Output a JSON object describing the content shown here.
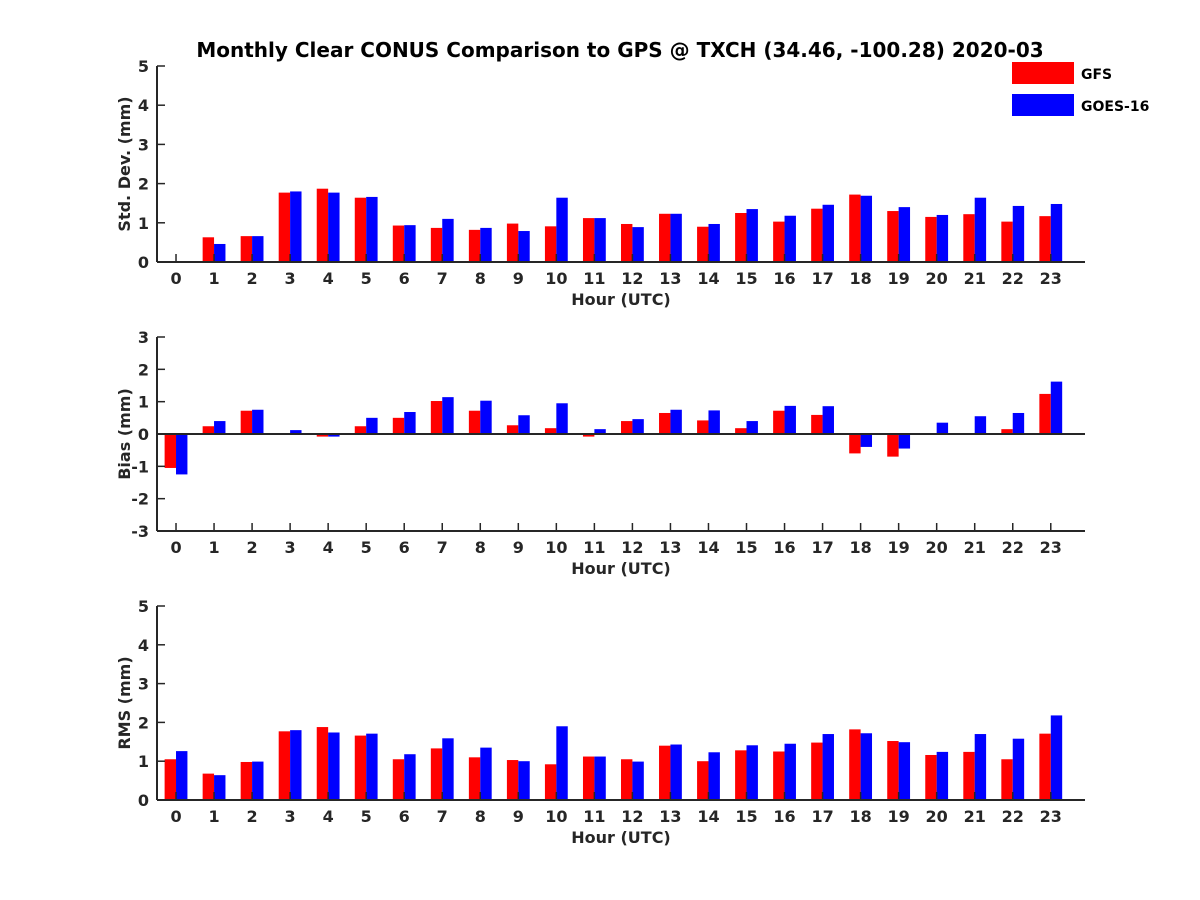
{
  "title": "Monthly Clear CONUS Comparison to GPS @ TXCH (34.46, -100.28) 2020-03",
  "legend": [
    {
      "name": "GFS",
      "color": "#ff0000"
    },
    {
      "name": "GOES-16",
      "color": "#0000ff"
    }
  ],
  "chart_data": [
    {
      "type": "bar",
      "title": "Monthly Clear CONUS Comparison to GPS @ TXCH (34.46, -100.28) 2020-03",
      "xlabel": "Hour (UTC)",
      "ylabel": "Std. Dev. (mm)",
      "ylim": [
        0,
        5
      ],
      "yticks": [
        0,
        1,
        2,
        3,
        4,
        5
      ],
      "categories": [
        "0",
        "1",
        "2",
        "3",
        "4",
        "5",
        "6",
        "7",
        "8",
        "9",
        "10",
        "11",
        "12",
        "13",
        "14",
        "15",
        "16",
        "17",
        "18",
        "19",
        "20",
        "21",
        "22",
        "23"
      ],
      "series": [
        {
          "name": "GFS",
          "color": "#ff0000",
          "values": [
            0,
            0.63,
            0.66,
            1.77,
            1.87,
            1.64,
            0.93,
            0.87,
            0.82,
            0.98,
            0.91,
            1.12,
            0.97,
            1.23,
            0.9,
            1.25,
            1.03,
            1.36,
            1.72,
            1.3,
            1.15,
            1.22,
            1.03,
            1.17
          ]
        },
        {
          "name": "GOES-16",
          "color": "#0000ff",
          "values": [
            0,
            0.46,
            0.66,
            1.8,
            1.77,
            1.66,
            0.94,
            1.1,
            0.87,
            0.79,
            1.64,
            1.12,
            0.89,
            1.23,
            0.97,
            1.35,
            1.18,
            1.46,
            1.69,
            1.4,
            1.2,
            1.64,
            1.43,
            1.48
          ]
        }
      ]
    },
    {
      "type": "bar",
      "xlabel": "Hour (UTC)",
      "ylabel": "Bias (mm)",
      "ylim": [
        -3,
        3
      ],
      "yticks": [
        -3,
        -2,
        -1,
        0,
        1,
        2,
        3
      ],
      "categories": [
        "0",
        "1",
        "2",
        "3",
        "4",
        "5",
        "6",
        "7",
        "8",
        "9",
        "10",
        "11",
        "12",
        "13",
        "14",
        "15",
        "16",
        "17",
        "18",
        "19",
        "20",
        "21",
        "22",
        "23"
      ],
      "series": [
        {
          "name": "GFS",
          "color": "#ff0000",
          "values": [
            -1.05,
            0.24,
            0.72,
            0,
            -0.08,
            0.24,
            0.5,
            1.02,
            0.72,
            0.27,
            0.18,
            -0.08,
            0.4,
            0.65,
            0.42,
            0.18,
            0.72,
            0.59,
            -0.6,
            -0.7,
            0,
            0.03,
            0.15,
            1.24
          ]
        },
        {
          "name": "GOES-16",
          "color": "#0000ff",
          "values": [
            -1.25,
            0.4,
            0.75,
            0.12,
            -0.08,
            0.5,
            0.68,
            1.14,
            1.03,
            0.58,
            0.95,
            0.15,
            0.46,
            0.75,
            0.73,
            0.4,
            0.87,
            0.86,
            -0.4,
            -0.45,
            0.35,
            0.55,
            0.65,
            1.62
          ]
        }
      ]
    },
    {
      "type": "bar",
      "xlabel": "Hour (UTC)",
      "ylabel": "RMS (mm)",
      "ylim": [
        0,
        5
      ],
      "yticks": [
        0,
        1,
        2,
        3,
        4,
        5
      ],
      "categories": [
        "0",
        "1",
        "2",
        "3",
        "4",
        "5",
        "6",
        "7",
        "8",
        "9",
        "10",
        "11",
        "12",
        "13",
        "14",
        "15",
        "16",
        "17",
        "18",
        "19",
        "20",
        "21",
        "22",
        "23"
      ],
      "series": [
        {
          "name": "GFS",
          "color": "#ff0000",
          "values": [
            1.05,
            0.68,
            0.98,
            1.77,
            1.88,
            1.66,
            1.05,
            1.33,
            1.1,
            1.03,
            0.92,
            1.12,
            1.05,
            1.4,
            1.0,
            1.28,
            1.25,
            1.48,
            1.82,
            1.52,
            1.16,
            1.24,
            1.05,
            1.71
          ]
        },
        {
          "name": "GOES-16",
          "color": "#0000ff",
          "values": [
            1.26,
            0.64,
            0.99,
            1.8,
            1.74,
            1.71,
            1.18,
            1.59,
            1.35,
            1.0,
            1.9,
            1.12,
            0.99,
            1.43,
            1.23,
            1.41,
            1.45,
            1.7,
            1.72,
            1.49,
            1.24,
            1.7,
            1.58,
            2.18
          ]
        }
      ]
    }
  ]
}
